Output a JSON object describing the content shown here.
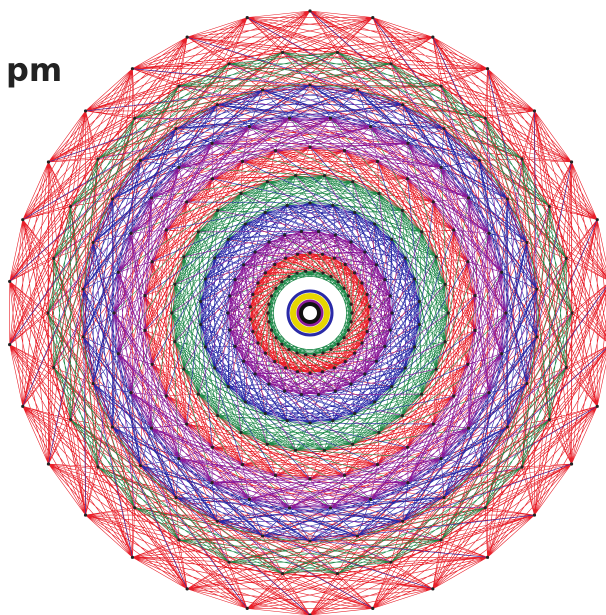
{
  "label": "pm"
}
